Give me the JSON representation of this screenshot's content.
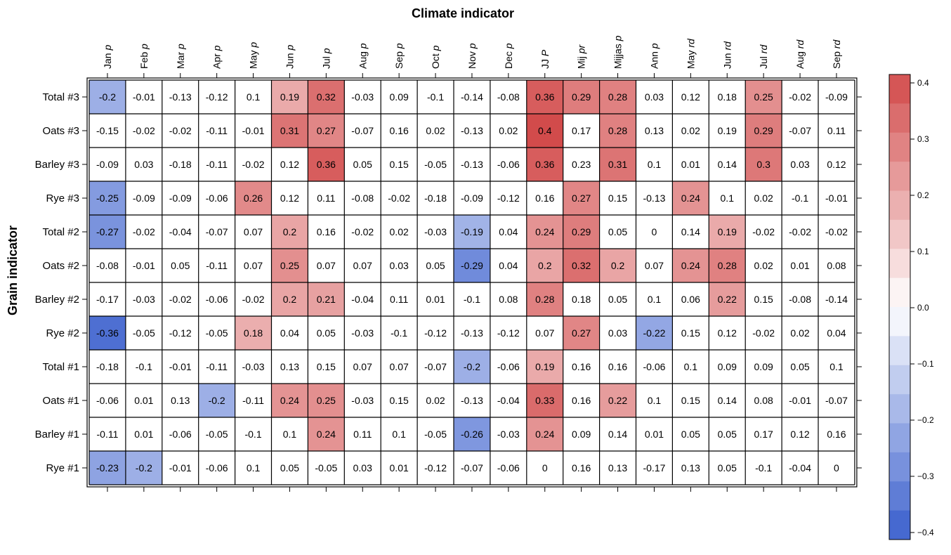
{
  "chart_data": {
    "type": "heatmap",
    "xlabel": "Climate indicator",
    "ylabel": "Grain indicator",
    "columns": [
      "Jan p",
      "Feb p",
      "Mar p",
      "Apr p",
      "May p",
      "Jun p",
      "Jul p",
      "Aug p",
      "Sep p",
      "Oct p",
      "Nov p",
      "Dec p",
      "JJ P",
      "Mij pr",
      "Mijjas p",
      "Ann p",
      "May rd",
      "Jun rd",
      "Jul rd",
      "Aug rd",
      "Sep rd"
    ],
    "rows": [
      "Total #3",
      "Oats #3",
      "Barley #3",
      "Rye #3",
      "Total #2",
      "Oats #2",
      "Barley #2",
      "Rye #2",
      "Total #1",
      "Oats #1",
      "Barley #1",
      "Rye #1"
    ],
    "values": [
      [
        -0.2,
        -0.01,
        -0.13,
        -0.12,
        0.1,
        0.19,
        0.32,
        -0.03,
        0.09,
        -0.1,
        -0.14,
        -0.08,
        0.36,
        0.29,
        0.28,
        0.03,
        0.12,
        0.18,
        0.25,
        -0.02,
        -0.09
      ],
      [
        -0.15,
        -0.02,
        -0.02,
        -0.11,
        -0.01,
        0.31,
        0.27,
        -0.07,
        0.16,
        0.02,
        -0.13,
        0.02,
        0.4,
        0.17,
        0.28,
        0.13,
        0.02,
        0.19,
        0.29,
        -0.07,
        0.11
      ],
      [
        -0.09,
        0.03,
        -0.18,
        -0.11,
        -0.02,
        0.12,
        0.36,
        0.05,
        0.15,
        -0.05,
        -0.13,
        -0.06,
        0.36,
        0.23,
        0.31,
        0.1,
        0.01,
        0.14,
        0.3,
        0.03,
        0.12
      ],
      [
        -0.25,
        -0.09,
        -0.09,
        -0.06,
        0.26,
        0.12,
        0.11,
        -0.08,
        -0.02,
        -0.18,
        -0.09,
        -0.12,
        0.16,
        0.27,
        0.15,
        -0.13,
        0.24,
        0.1,
        0.02,
        -0.1,
        -0.01
      ],
      [
        -0.27,
        -0.02,
        -0.04,
        -0.07,
        0.07,
        0.2,
        0.16,
        -0.02,
        0.02,
        -0.03,
        -0.19,
        0.04,
        0.24,
        0.29,
        0.05,
        0,
        0.14,
        0.19,
        -0.02,
        -0.02,
        -0.02
      ],
      [
        -0.08,
        -0.01,
        0.05,
        -0.11,
        0.07,
        0.25,
        0.07,
        0.07,
        0.03,
        0.05,
        -0.29,
        0.04,
        0.2,
        0.32,
        0.2,
        0.07,
        0.24,
        0.28,
        0.02,
        0.01,
        0.08
      ],
      [
        -0.17,
        -0.03,
        -0.02,
        -0.06,
        -0.02,
        0.2,
        0.21,
        -0.04,
        0.11,
        0.01,
        -0.1,
        0.08,
        0.28,
        0.18,
        0.05,
        0.1,
        0.06,
        0.22,
        0.15,
        -0.08,
        -0.14
      ],
      [
        -0.36,
        -0.05,
        -0.12,
        -0.05,
        0.18,
        0.04,
        0.05,
        -0.03,
        -0.1,
        -0.12,
        -0.13,
        -0.12,
        0.07,
        0.27,
        0.03,
        -0.22,
        0.15,
        0.12,
        -0.02,
        0.02,
        0.04
      ],
      [
        -0.18,
        -0.1,
        -0.01,
        -0.11,
        -0.03,
        0.13,
        0.15,
        0.07,
        0.07,
        -0.07,
        -0.2,
        -0.06,
        0.19,
        0.16,
        0.16,
        -0.06,
        0.1,
        0.09,
        0.09,
        0.05,
        0.1
      ],
      [
        -0.06,
        0.01,
        0.13,
        -0.2,
        -0.11,
        0.24,
        0.25,
        -0.03,
        0.15,
        0.02,
        -0.13,
        -0.04,
        0.33,
        0.16,
        0.22,
        0.1,
        0.15,
        0.14,
        0.08,
        -0.01,
        -0.07
      ],
      [
        -0.11,
        0.01,
        -0.06,
        -0.05,
        -0.1,
        0.1,
        0.24,
        0.11,
        0.1,
        -0.05,
        -0.26,
        -0.03,
        0.24,
        0.09,
        0.14,
        0.01,
        0.05,
        0.05,
        0.17,
        0.12,
        0.16
      ],
      [
        -0.23,
        -0.2,
        -0.01,
        -0.06,
        0.1,
        0.05,
        -0.05,
        0.03,
        0.01,
        -0.12,
        -0.07,
        -0.06,
        0,
        0.16,
        0.13,
        -0.17,
        0.13,
        0.05,
        -0.1,
        -0.04,
        0
      ]
    ],
    "highlighted_cells": [
      [
        0,
        0
      ],
      [
        0,
        5
      ],
      [
        0,
        6
      ],
      [
        0,
        12
      ],
      [
        0,
        13
      ],
      [
        0,
        14
      ],
      [
        0,
        18
      ],
      [
        1,
        5
      ],
      [
        1,
        6
      ],
      [
        1,
        12
      ],
      [
        1,
        14
      ],
      [
        1,
        18
      ],
      [
        2,
        6
      ],
      [
        2,
        12
      ],
      [
        2,
        14
      ],
      [
        2,
        18
      ],
      [
        3,
        0
      ],
      [
        3,
        4
      ],
      [
        3,
        13
      ],
      [
        3,
        16
      ],
      [
        4,
        0
      ],
      [
        4,
        5
      ],
      [
        4,
        10
      ],
      [
        4,
        12
      ],
      [
        4,
        13
      ],
      [
        4,
        17
      ],
      [
        5,
        5
      ],
      [
        5,
        10
      ],
      [
        5,
        12
      ],
      [
        5,
        13
      ],
      [
        5,
        14
      ],
      [
        5,
        16
      ],
      [
        5,
        17
      ],
      [
        6,
        5
      ],
      [
        6,
        6
      ],
      [
        6,
        12
      ],
      [
        6,
        17
      ],
      [
        7,
        0
      ],
      [
        7,
        4
      ],
      [
        7,
        13
      ],
      [
        7,
        15
      ],
      [
        8,
        10
      ],
      [
        8,
        12
      ],
      [
        9,
        3
      ],
      [
        9,
        5
      ],
      [
        9,
        6
      ],
      [
        9,
        12
      ],
      [
        9,
        14
      ],
      [
        10,
        6
      ],
      [
        10,
        10
      ],
      [
        10,
        12
      ],
      [
        11,
        0
      ],
      [
        11,
        1
      ]
    ],
    "colorbar": {
      "range": [
        -0.4,
        0.4
      ],
      "ticks": [
        "0.4",
        "0.3",
        "0.2",
        "0.1",
        "0.0",
        "−0.1",
        "−0.2",
        "−0.3",
        "−0.4"
      ],
      "low_color": "#3a5fcd",
      "mid_color": "#ffffff",
      "high_color": "#d24b4b"
    },
    "grid": true,
    "legend": "right"
  }
}
